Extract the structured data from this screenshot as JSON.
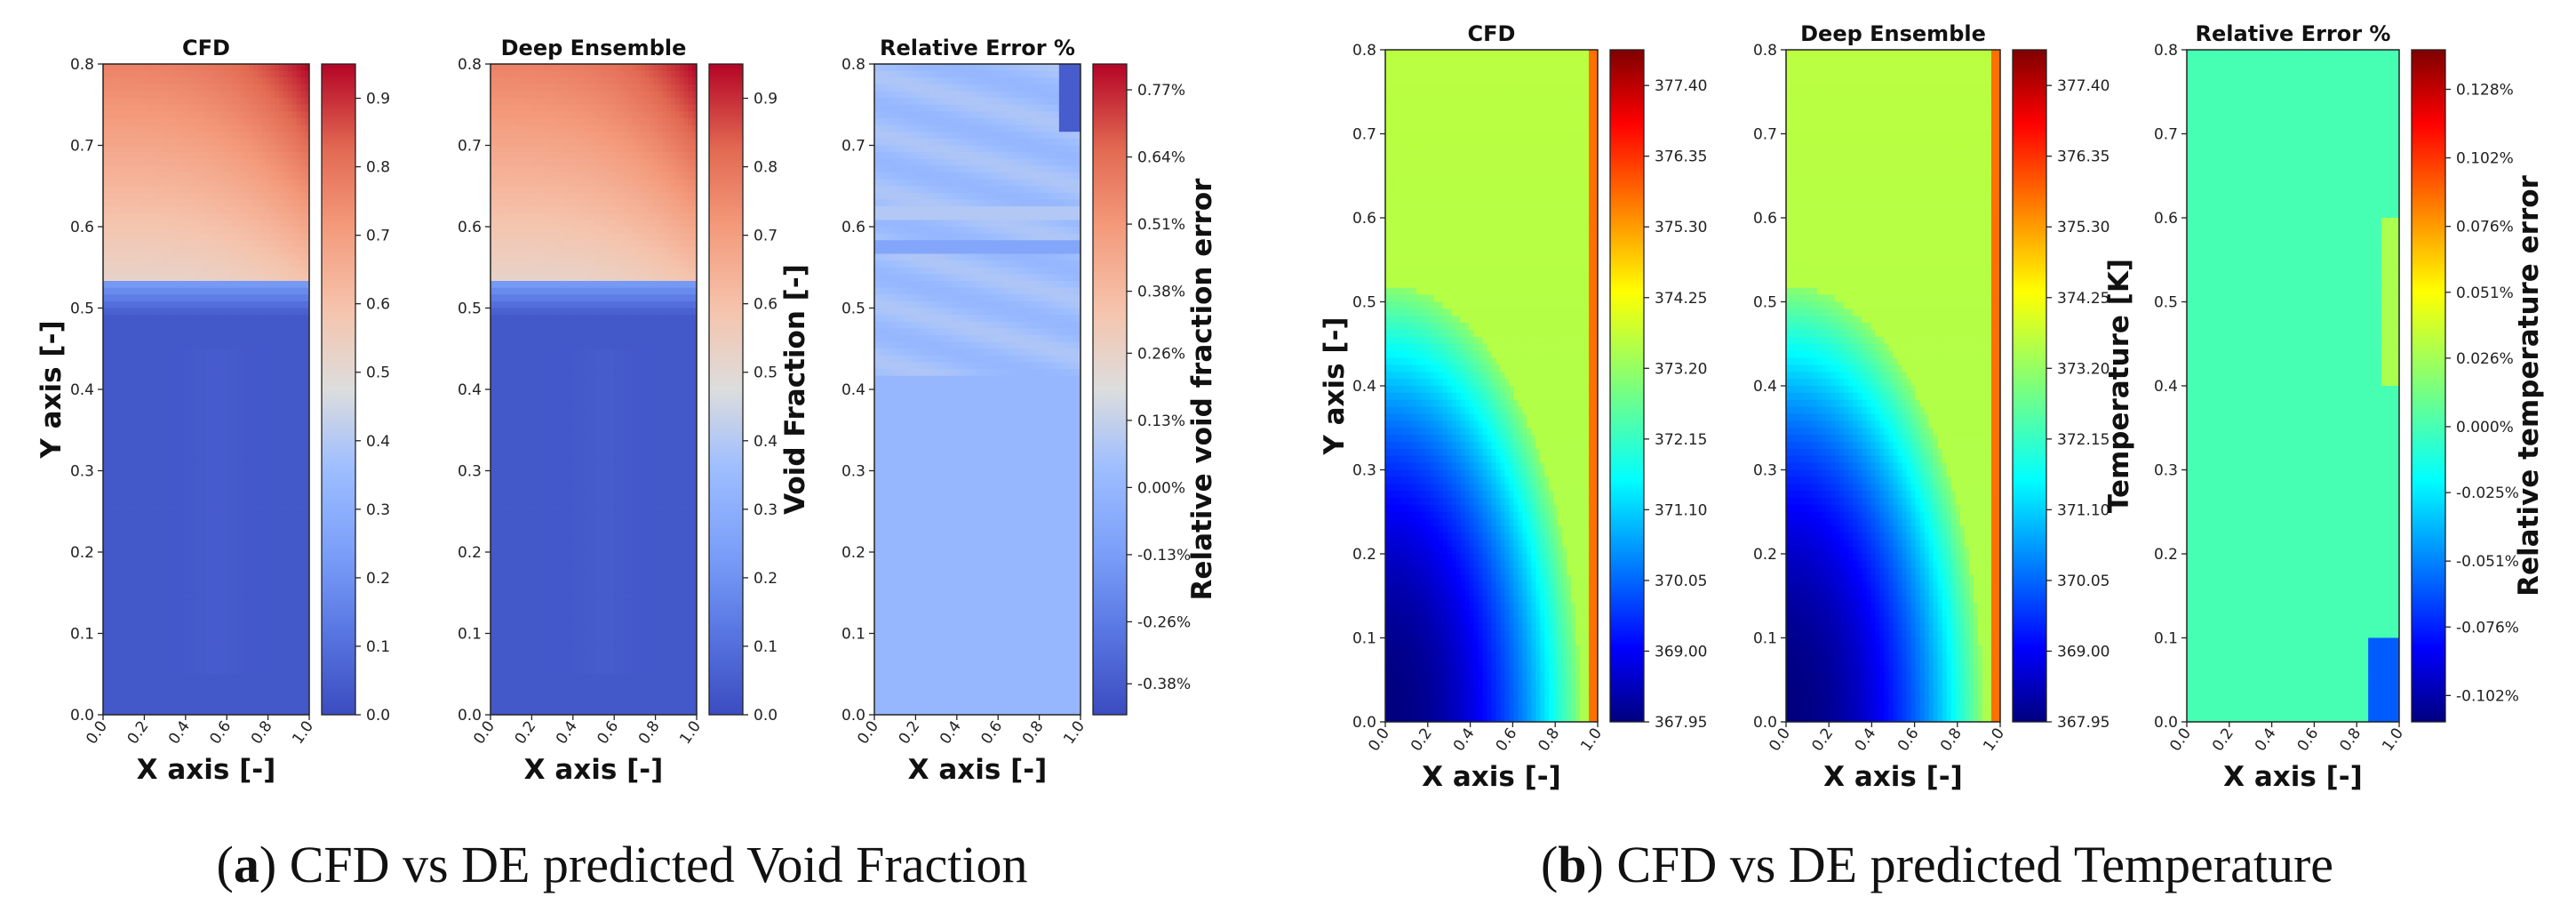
{
  "chart_data": [
    {
      "id": "a-cfd",
      "type": "heatmap",
      "field": "void",
      "title": "CFD",
      "xlabel": "X axis [-]",
      "ylabel": "Y axis [-]",
      "xlim": [
        0,
        1
      ],
      "ylim": [
        0,
        0.8
      ],
      "xticks": [
        "0.0",
        "0.2",
        "0.4",
        "0.6",
        "0.8",
        "1.0"
      ],
      "yticks": [
        "0.0",
        "0.1",
        "0.2",
        "0.3",
        "0.4",
        "0.5",
        "0.6",
        "0.7",
        "0.8"
      ],
      "colormap": "coolwarm",
      "colorbar": {
        "label": "",
        "range": [
          0,
          0.95
        ],
        "ticks": [
          "0.0",
          "0.1",
          "0.2",
          "0.3",
          "0.4",
          "0.5",
          "0.6",
          "0.7",
          "0.8",
          "0.9"
        ]
      }
    },
    {
      "id": "a-de",
      "type": "heatmap",
      "field": "void",
      "title": "Deep Ensemble",
      "xlabel": "X axis [-]",
      "ylabel": "",
      "xlim": [
        0,
        1
      ],
      "ylim": [
        0,
        0.8
      ],
      "xticks": [
        "0.0",
        "0.2",
        "0.4",
        "0.6",
        "0.8",
        "1.0"
      ],
      "yticks": [
        "0.0",
        "0.1",
        "0.2",
        "0.3",
        "0.4",
        "0.5",
        "0.6",
        "0.7",
        "0.8"
      ],
      "colormap": "coolwarm",
      "colorbar": {
        "label": "Void Fraction [-]",
        "range": [
          0,
          0.95
        ],
        "ticks": [
          "0.0",
          "0.1",
          "0.2",
          "0.3",
          "0.4",
          "0.5",
          "0.6",
          "0.7",
          "0.8",
          "0.9"
        ]
      }
    },
    {
      "id": "a-err",
      "type": "heatmap",
      "field": "voiderr",
      "title": "Relative Error %",
      "xlabel": "X axis [-]",
      "ylabel": "",
      "xlim": [
        0,
        1
      ],
      "ylim": [
        0,
        0.8
      ],
      "xticks": [
        "0.0",
        "0.2",
        "0.4",
        "0.6",
        "0.8",
        "1.0"
      ],
      "yticks": [
        "0.0",
        "0.1",
        "0.2",
        "0.3",
        "0.4",
        "0.5",
        "0.6",
        "0.7",
        "0.8"
      ],
      "colormap": "coolwarm",
      "colorbar": {
        "label": "Relative void fraction error",
        "range": [
          -0.44,
          0.82
        ],
        "ticks": [
          "-0.38%",
          "-0.26%",
          "-0.13%",
          "0.00%",
          "0.13%",
          "0.26%",
          "0.38%",
          "0.51%",
          "0.64%",
          "0.77%"
        ]
      }
    },
    {
      "id": "b-cfd",
      "type": "heatmap",
      "field": "temp",
      "title": "CFD",
      "xlabel": "X axis [-]",
      "ylabel": "Y axis [-]",
      "xlim": [
        0,
        1
      ],
      "ylim": [
        0,
        0.8
      ],
      "xticks": [
        "0.0",
        "0.2",
        "0.4",
        "0.6",
        "0.8",
        "1.0"
      ],
      "yticks": [
        "0.0",
        "0.1",
        "0.2",
        "0.3",
        "0.4",
        "0.5",
        "0.6",
        "0.7",
        "0.8"
      ],
      "colormap": "jet",
      "colorbar": {
        "label": "",
        "range": [
          367.95,
          377.93
        ],
        "ticks": [
          "367.95",
          "369.00",
          "370.05",
          "371.10",
          "372.15",
          "373.20",
          "374.25",
          "375.30",
          "376.35",
          "377.40"
        ]
      }
    },
    {
      "id": "b-de",
      "type": "heatmap",
      "field": "temp",
      "title": "Deep Ensemble",
      "xlabel": "X axis [-]",
      "ylabel": "",
      "xlim": [
        0,
        1
      ],
      "ylim": [
        0,
        0.8
      ],
      "xticks": [
        "0.0",
        "0.2",
        "0.4",
        "0.6",
        "0.8",
        "1.0"
      ],
      "yticks": [
        "0.0",
        "0.1",
        "0.2",
        "0.3",
        "0.4",
        "0.5",
        "0.6",
        "0.7",
        "0.8"
      ],
      "colormap": "jet",
      "colorbar": {
        "label": "Temperature [K]",
        "range": [
          367.95,
          377.93
        ],
        "ticks": [
          "367.95",
          "369.00",
          "370.05",
          "371.10",
          "372.15",
          "373.20",
          "374.25",
          "375.30",
          "376.35",
          "377.40"
        ]
      }
    },
    {
      "id": "b-err",
      "type": "heatmap",
      "field": "temperr",
      "title": "Relative Error %",
      "xlabel": "X axis [-]",
      "ylabel": "",
      "xlim": [
        0,
        1
      ],
      "ylim": [
        0,
        0.8
      ],
      "xticks": [
        "0.0",
        "0.2",
        "0.4",
        "0.6",
        "0.8",
        "1.0"
      ],
      "yticks": [
        "0.0",
        "0.1",
        "0.2",
        "0.3",
        "0.4",
        "0.5",
        "0.6",
        "0.7",
        "0.8"
      ],
      "colormap": "jet",
      "colorbar": {
        "label": "Relative temperature error",
        "range": [
          -0.112,
          0.143
        ],
        "ticks": [
          "-0.102%",
          "-0.076%",
          "-0.051%",
          "-0.025%",
          "0.000%",
          "0.026%",
          "0.051%",
          "0.076%",
          "0.102%",
          "0.128%"
        ]
      }
    }
  ],
  "captions": {
    "a_label": "(a)",
    "a_label_short": "a",
    "a_text": "CFD vs DE predicted Void Fraction",
    "b_label": "(b)",
    "b_label_short": "b",
    "b_text": "CFD vs DE predicted Temperature"
  }
}
